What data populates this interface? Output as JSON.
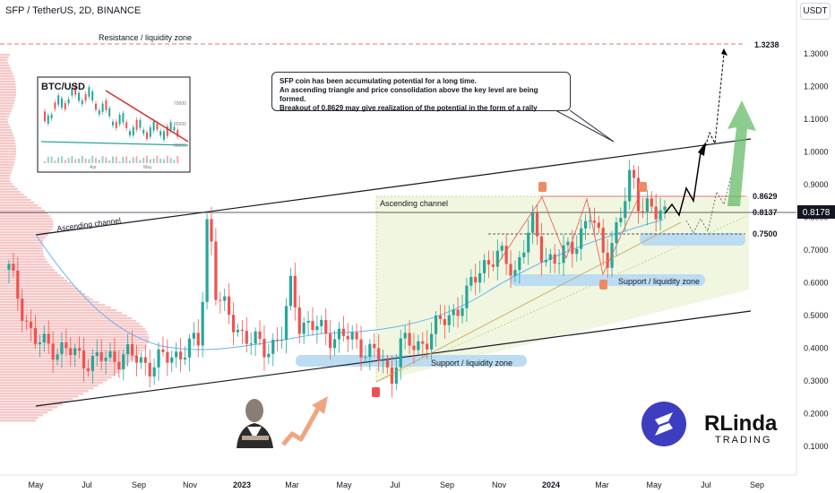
{
  "header": {
    "pair": "SFP / TetherUS, 2D, BINANCE",
    "unit": "USDT"
  },
  "annotations": {
    "resistance_label": "Resistance / liquidity zone",
    "ascending_channel_left": "Ascending channel",
    "ascending_channel_right": "Ascending channel",
    "support_zone_low": "Support / liquidity zone",
    "support_zone_high": "Support / liquidity zone",
    "callout_line1": "SFP coin has been accumulating potential for a long time.",
    "callout_line2": "An ascending triangle and price consolidation above the key level are being formed.",
    "callout_line3": "Breakout of 0.8629 may give realization of the potential in the form of a rally"
  },
  "levels": {
    "resistance": "1.3238",
    "key_level": "0.8629",
    "mid_level": "0.8137",
    "support_level": "0.7500",
    "current_price": "0.8178"
  },
  "inset": {
    "title": "BTC/USD",
    "ticks": [
      "70000",
      "65000",
      "60000"
    ],
    "months": [
      "Apr",
      "May"
    ]
  },
  "branding": {
    "logo_text_top": "RLinda",
    "logo_text_bottom": "TRADING"
  },
  "colors": {
    "up": "#26a69a",
    "down": "#ef5350",
    "zone_blue": "#bcdcf1",
    "triangle_fill": "#e8f1d0",
    "channel_line": "#131722",
    "resistance_line": "#e57373",
    "arrow_green": "#66bb6a",
    "sfp_logo": "#3d3dbf"
  },
  "chart_data": {
    "type": "candlestick",
    "title": "SFP / TetherUS, 2D, BINANCE",
    "ylabel": "USDT",
    "ylim": [
      0.02,
      1.42
    ],
    "yticks": [
      "1.3000",
      "1.2000",
      "1.1000",
      "1.0000",
      "0.9000",
      "0.8000",
      "0.7000",
      "0.6000",
      "0.5000",
      "0.4000",
      "0.3000",
      "0.2000",
      "0.1000"
    ],
    "xticks": [
      "May",
      "Jul",
      "Sep",
      "Nov",
      "2023",
      "Mar",
      "May",
      "Jul",
      "Sep",
      "Nov",
      "2024",
      "Mar",
      "May",
      "Jul",
      "Sep"
    ],
    "price_path": [
      [
        0,
        0.64
      ],
      [
        3,
        0.42
      ],
      [
        6,
        0.4
      ],
      [
        10,
        0.36
      ],
      [
        14,
        0.38
      ],
      [
        17,
        0.35
      ],
      [
        20,
        0.38
      ],
      [
        23,
        0.42
      ],
      [
        24,
        0.85
      ],
      [
        25,
        0.55
      ],
      [
        27,
        0.48
      ],
      [
        29,
        0.42
      ],
      [
        31,
        0.4
      ],
      [
        33,
        0.44
      ],
      [
        34,
        0.6
      ],
      [
        35,
        0.48
      ],
      [
        37,
        0.46
      ],
      [
        39,
        0.44
      ],
      [
        41,
        0.43
      ],
      [
        43,
        0.4
      ],
      [
        45,
        0.36
      ],
      [
        46,
        0.3
      ],
      [
        47,
        0.42
      ],
      [
        49,
        0.4
      ],
      [
        51,
        0.45
      ],
      [
        53,
        0.5
      ],
      [
        55,
        0.55
      ],
      [
        57,
        0.66
      ],
      [
        59,
        0.68
      ],
      [
        61,
        0.64
      ],
      [
        63,
        0.78
      ],
      [
        64,
        0.7
      ],
      [
        66,
        0.66
      ],
      [
        68,
        0.72
      ],
      [
        70,
        0.8
      ],
      [
        72,
        0.68
      ],
      [
        74,
        0.82
      ],
      [
        75,
        0.95
      ],
      [
        76,
        0.84
      ],
      [
        77,
        0.83
      ],
      [
        78,
        0.8
      ],
      [
        79,
        0.82
      ]
    ],
    "time_steps": 79,
    "levels": [
      1.3238,
      0.8629,
      0.8137,
      0.75
    ],
    "current_price": 0.8178
  }
}
